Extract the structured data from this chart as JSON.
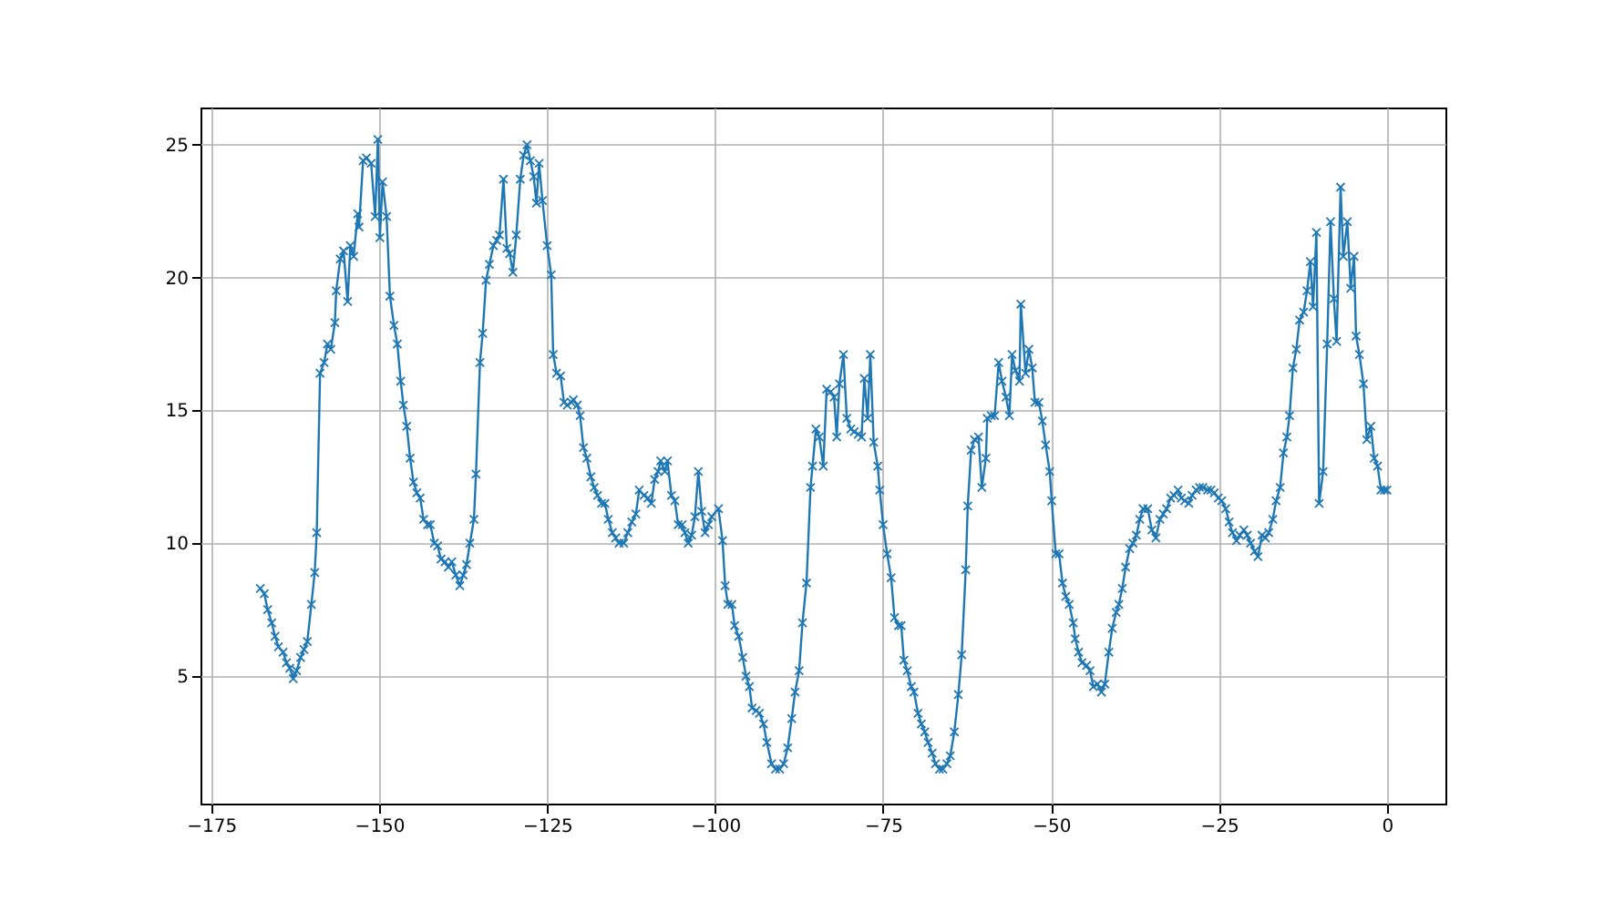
{
  "chart_data": {
    "type": "line",
    "marker": "cross",
    "line_style": "solid",
    "grid": true,
    "xlim": [
      -176.6,
      8.7
    ],
    "ylim": [
      0.2,
      26.4
    ],
    "xticks": [
      -175,
      -150,
      -125,
      -100,
      -75,
      -50,
      -25,
      0
    ],
    "yticks": [
      5,
      10,
      15,
      20,
      25
    ],
    "series": [
      {
        "color": "#1f77b4",
        "x": [
          -167.7,
          -167.1,
          -166.6,
          -166.0,
          -165.5,
          -165.0,
          -164.3,
          -163.8,
          -163.3,
          -162.8,
          -162.3,
          -161.7,
          -161.2,
          -160.7,
          -160.1,
          -159.6,
          -159.3,
          -158.8,
          -158.2,
          -157.7,
          -157.2,
          -156.6,
          -156.4,
          -155.8,
          -155.3,
          -154.7,
          -154.3,
          -153.8,
          -153.2,
          -153.0,
          -152.4,
          -151.9,
          -151.2,
          -150.6,
          -150.2,
          -149.9,
          -149.5,
          -148.9,
          -148.4,
          -147.8,
          -147.3,
          -146.8,
          -146.4,
          -145.9,
          -145.4,
          -144.9,
          -144.4,
          -143.9,
          -143.4,
          -142.8,
          -142.4,
          -141.8,
          -141.3,
          -140.8,
          -140.2,
          -139.7,
          -139.2,
          -138.6,
          -138.0,
          -137.5,
          -137.0,
          -136.5,
          -135.9,
          -135.6,
          -135.0,
          -134.6,
          -134.1,
          -133.6,
          -133.0,
          -132.5,
          -132.1,
          -131.5,
          -131.0,
          -130.6,
          -130.1,
          -129.6,
          -129.0,
          -128.5,
          -128.0,
          -127.5,
          -127.0,
          -126.6,
          -126.2,
          -125.7,
          -125.0,
          -124.4,
          -124.1,
          -123.6,
          -123.0,
          -122.5,
          -122.0,
          -121.4,
          -121.1,
          -120.5,
          -120.1,
          -119.6,
          -119.1,
          -118.5,
          -118.0,
          -117.5,
          -116.9,
          -116.4,
          -115.9,
          -115.3,
          -114.8,
          -114.3,
          -113.6,
          -113.0,
          -112.4,
          -111.8,
          -111.3,
          -110.6,
          -110.0,
          -109.5,
          -109.0,
          -108.5,
          -108.1,
          -107.5,
          -107.1,
          -106.5,
          -106.0,
          -105.5,
          -104.9,
          -104.5,
          -104.0,
          -103.5,
          -103.0,
          -102.5,
          -102.0,
          -101.5,
          -101.0,
          -100.5,
          -99.5,
          -98.9,
          -98.5,
          -98.1,
          -97.5,
          -97.1,
          -96.5,
          -95.9,
          -95.4,
          -94.9,
          -94.5,
          -93.9,
          -93.4,
          -92.8,
          -92.3,
          -91.6,
          -91.0,
          -90.4,
          -89.8,
          -89.2,
          -88.6,
          -88.1,
          -87.5,
          -87.0,
          -86.4,
          -85.8,
          -85.5,
          -85.0,
          -84.5,
          -83.9,
          -83.4,
          -82.8,
          -82.3,
          -81.9,
          -81.5,
          -80.9,
          -80.4,
          -79.8,
          -79.3,
          -78.7,
          -78.2,
          -77.8,
          -77.3,
          -76.9,
          -76.4,
          -75.8,
          -75.5,
          -75.0,
          -74.4,
          -73.8,
          -73.3,
          -72.7,
          -72.3,
          -71.9,
          -71.4,
          -70.8,
          -70.4,
          -69.8,
          -69.3,
          -68.8,
          -68.3,
          -67.7,
          -67.2,
          -66.6,
          -66.1,
          -65.5,
          -65.0,
          -64.4,
          -63.8,
          -63.3,
          -62.7,
          -62.4,
          -61.9,
          -61.4,
          -60.8,
          -60.3,
          -59.7,
          -59.5,
          -58.9,
          -58.4,
          -57.8,
          -57.3,
          -56.7,
          -56.2,
          -55.8,
          -55.3,
          -54.7,
          -54.5,
          -53.8,
          -53.3,
          -52.8,
          -52.4,
          -51.8,
          -51.3,
          -50.8,
          -50.2,
          -49.9,
          -49.3,
          -48.8,
          -48.3,
          -47.8,
          -47.3,
          -46.7,
          -46.4,
          -45.9,
          -45.4,
          -44.7,
          -44.2,
          -43.7,
          -43.1,
          -42.5,
          -42.0,
          -41.4,
          -40.9,
          -40.3,
          -39.9,
          -39.4,
          -38.9,
          -38.3,
          -37.8,
          -37.3,
          -36.8,
          -36.3,
          -35.6,
          -35.0,
          -34.4,
          -33.8,
          -33.3,
          -32.8,
          -32.2,
          -31.7,
          -31.1,
          -30.6,
          -30.1,
          -29.5,
          -29.0,
          -28.4,
          -27.9,
          -27.4,
          -26.7,
          -26.2,
          -25.7,
          -25.1,
          -24.6,
          -24.0,
          -23.5,
          -23.0,
          -22.4,
          -21.9,
          -21.3,
          -20.8,
          -20.3,
          -19.7,
          -19.2,
          -18.6,
          -18.1,
          -17.6,
          -17.0,
          -16.5,
          -15.9,
          -15.4,
          -14.9,
          -14.5,
          -14.0,
          -13.5,
          -13.0,
          -12.4,
          -11.9,
          -11.4,
          -11.0,
          -10.5,
          -10.1,
          -9.5,
          -8.9,
          -8.4,
          -7.9,
          -7.5,
          -6.9,
          -6.5,
          -5.9,
          -5.4,
          -4.9,
          -4.6,
          -4.1,
          -3.5,
          -3.0,
          -2.4,
          -1.9,
          -1.4,
          -0.9,
          -0.4,
          0.0
        ],
        "values": [
          8.3,
          8.1,
          7.5,
          7.0,
          6.5,
          6.1,
          5.9,
          5.5,
          5.3,
          4.9,
          5.2,
          5.7,
          6.0,
          6.3,
          7.7,
          8.9,
          10.4,
          16.4,
          16.8,
          17.5,
          17.3,
          18.3,
          19.5,
          20.7,
          21.0,
          19.1,
          21.2,
          20.8,
          22.4,
          21.9,
          24.4,
          24.5,
          24.3,
          22.3,
          25.2,
          21.5,
          23.6,
          22.3,
          19.3,
          18.2,
          17.5,
          16.1,
          15.2,
          14.4,
          13.2,
          12.3,
          11.9,
          11.7,
          10.9,
          10.7,
          10.7,
          10.0,
          9.9,
          9.4,
          9.3,
          9.1,
          9.3,
          8.8,
          8.4,
          8.8,
          9.2,
          10.0,
          10.9,
          12.6,
          16.8,
          17.9,
          19.9,
          20.5,
          21.2,
          21.4,
          21.6,
          23.7,
          21.1,
          20.9,
          20.2,
          21.6,
          23.7,
          24.6,
          25.0,
          24.4,
          23.8,
          22.8,
          24.3,
          22.9,
          21.2,
          20.1,
          17.1,
          16.4,
          16.3,
          15.3,
          15.2,
          15.3,
          15.4,
          15.2,
          14.8,
          13.6,
          13.2,
          12.5,
          12.1,
          11.8,
          11.5,
          11.5,
          10.9,
          10.4,
          10.2,
          10.0,
          10.0,
          10.4,
          10.8,
          11.1,
          12.0,
          11.8,
          11.7,
          11.5,
          12.4,
          12.7,
          13.1,
          12.7,
          13.1,
          11.8,
          11.6,
          10.7,
          10.7,
          10.4,
          10.0,
          10.3,
          11.0,
          12.7,
          11.2,
          10.4,
          10.7,
          11.0,
          11.3,
          10.1,
          8.4,
          7.7,
          7.7,
          6.9,
          6.5,
          5.7,
          5.0,
          4.6,
          3.8,
          3.7,
          3.6,
          3.2,
          2.5,
          1.7,
          1.5,
          1.5,
          1.7,
          2.3,
          3.4,
          4.4,
          5.2,
          7.0,
          8.5,
          12.1,
          12.9,
          14.3,
          14.0,
          12.9,
          15.8,
          15.7,
          15.5,
          14.0,
          16.0,
          17.1,
          14.7,
          14.3,
          14.2,
          14.1,
          14.0,
          16.2,
          14.7,
          17.1,
          13.8,
          12.9,
          12.0,
          10.7,
          9.6,
          8.7,
          7.2,
          6.9,
          6.9,
          5.6,
          5.2,
          4.6,
          4.4,
          3.6,
          3.2,
          2.9,
          2.5,
          2.1,
          1.7,
          1.5,
          1.5,
          1.7,
          2.0,
          2.9,
          4.3,
          5.8,
          9.0,
          11.4,
          13.5,
          13.9,
          14.0,
          12.1,
          13.2,
          14.7,
          14.8,
          14.8,
          16.8,
          16.1,
          15.5,
          14.8,
          17.1,
          16.5,
          16.1,
          19.0,
          16.4,
          17.3,
          16.6,
          15.3,
          15.3,
          14.6,
          13.7,
          12.7,
          11.6,
          9.6,
          9.6,
          8.5,
          8.0,
          7.7,
          7.0,
          6.4,
          5.9,
          5.5,
          5.4,
          5.2,
          4.6,
          4.7,
          4.4,
          4.7,
          5.9,
          6.8,
          7.4,
          7.7,
          8.3,
          9.1,
          9.8,
          10.0,
          10.3,
          10.9,
          11.3,
          11.3,
          10.5,
          10.2,
          10.9,
          11.1,
          11.3,
          11.7,
          11.8,
          12.0,
          11.7,
          11.6,
          11.5,
          11.8,
          12.0,
          12.1,
          12.1,
          12.0,
          12.0,
          11.9,
          11.7,
          11.6,
          11.3,
          10.8,
          10.4,
          10.1,
          10.3,
          10.5,
          10.3,
          10.0,
          9.7,
          9.5,
          10.3,
          10.2,
          10.4,
          10.9,
          11.6,
          12.1,
          13.4,
          14.0,
          14.8,
          16.6,
          17.3,
          18.4,
          18.7,
          19.5,
          20.6,
          18.9,
          21.7,
          11.5,
          12.7,
          17.5,
          22.1,
          19.2,
          17.6,
          23.4,
          20.8,
          22.1,
          19.6,
          20.8,
          17.8,
          17.1,
          16.0,
          13.9,
          14.4,
          13.2,
          12.9,
          12.0,
          12.0,
          12.0
        ]
      }
    ]
  }
}
